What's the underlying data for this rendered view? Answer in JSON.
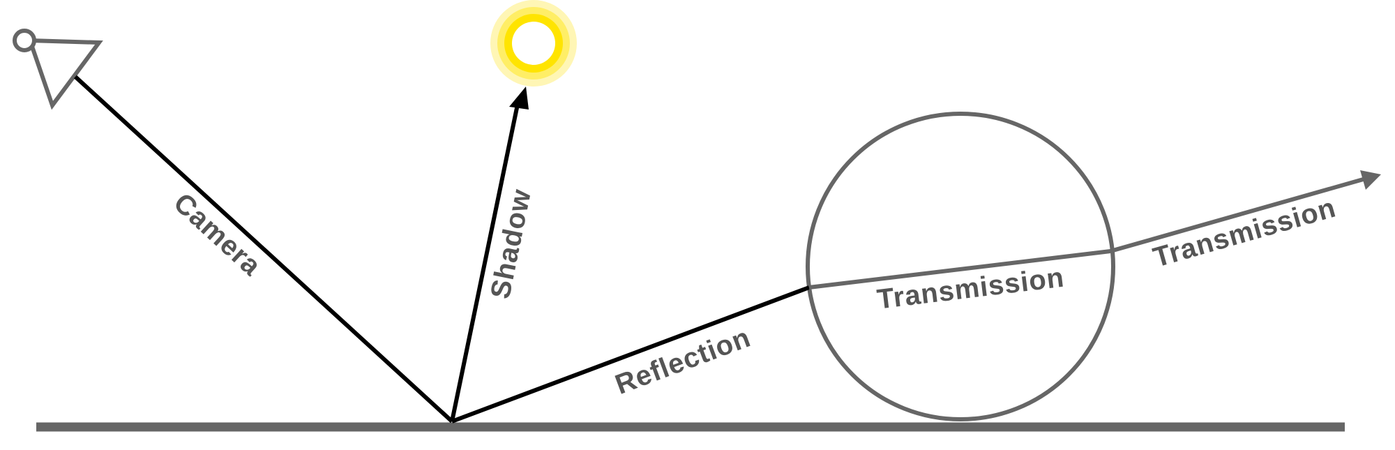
{
  "labels": {
    "camera": "Camera",
    "shadow": "Shadow",
    "reflection": "Reflection",
    "transmission_inner": "Transmission",
    "transmission_outer": "Transmission"
  },
  "icons": {
    "camera": "camera-icon",
    "light": "sun-light-icon"
  },
  "colors": {
    "primary_ray": "#000000",
    "secondary_ray": "#666666",
    "ground": "#666666",
    "label": "#555555",
    "light_core": "#FFE400",
    "light_glow": "#FFF4A0"
  }
}
